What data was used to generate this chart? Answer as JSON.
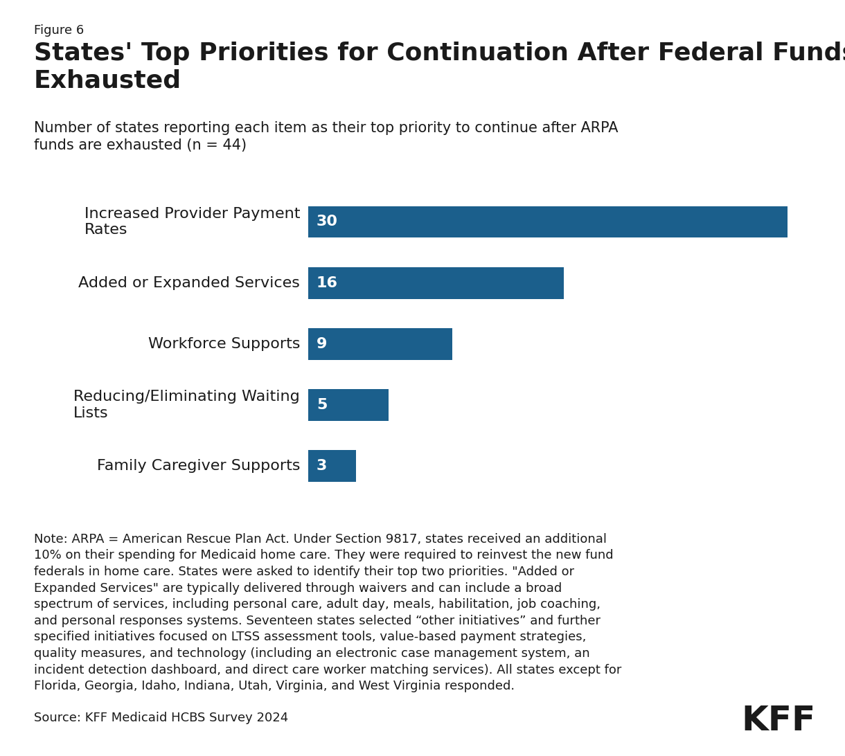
{
  "figure_label": "Figure 6",
  "title": "States' Top Priorities for Continuation After Federal Funds are\nExhausted",
  "subtitle": "Number of states reporting each item as their top priority to continue after ARPA\nfunds are exhausted (n = 44)",
  "categories": [
    "Increased Provider Payment\nRates",
    "Added or Expanded Services",
    "Workforce Supports",
    "Reducing/Eliminating Waiting\nLists",
    "Family Caregiver Supports"
  ],
  "values": [
    30,
    16,
    9,
    5,
    3
  ],
  "bar_color": "#1B5F8C",
  "label_color": "#ffffff",
  "text_color": "#1a1a1a",
  "background_color": "#ffffff",
  "max_value": 32,
  "note_text": "Note: ARPA = American Rescue Plan Act. Under Section 9817, states received an additional\n10% on their spending for Medicaid home care. They were required to reinvest the new fund\nfederals in home care. States were asked to identify their top two priorities. \"Added or\nExpanded Services\" are typically delivered through waivers and can include a broad\nspectrum of services, including personal care, adult day, meals, habilitation, job coaching,\nand personal responses systems. Seventeen states selected “other initiatives” and further\nspecified initiatives focused on LTSS assessment tools, value-based payment strategies,\nquality measures, and technology (including an electronic case management system, an\nincident detection dashboard, and direct care worker matching services). All states except for\nFlorida, Georgia, Idaho, Indiana, Utah, Virginia, and West Virginia responded.",
  "source_text": "Source: KFF Medicaid HCBS Survey 2024",
  "kff_text": "KFF",
  "figure_label_fontsize": 13,
  "title_fontsize": 26,
  "subtitle_fontsize": 15,
  "bar_label_fontsize": 16,
  "category_fontsize": 16,
  "note_fontsize": 13,
  "source_fontsize": 13,
  "kff_fontsize": 36
}
